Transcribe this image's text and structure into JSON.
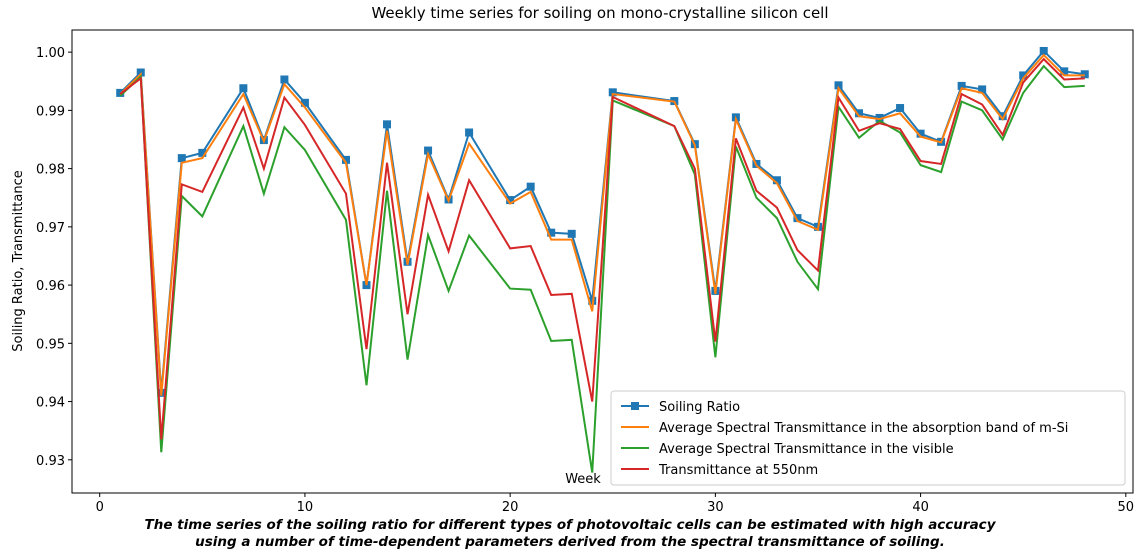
{
  "chart_data": {
    "type": "line",
    "title": "Weekly time series for soiling on mono-crystalline silicon cell",
    "x_label": "Week",
    "y_label": "Soiling Ratio, Transmittance",
    "caption": [
      "The time series of the soiling ratio for different types of photovoltaic cells can be estimated with high accuracy",
      "using a number of time-dependent parameters derived from the spectral transmittance of soiling."
    ],
    "x": [
      1,
      2,
      3,
      4,
      5,
      7,
      8,
      9,
      10,
      12,
      13,
      14,
      15,
      16,
      17,
      18,
      20,
      21,
      22,
      23,
      24,
      25,
      28,
      29,
      30,
      31,
      32,
      33,
      34,
      35,
      36,
      37,
      38,
      39,
      40,
      41,
      42,
      43,
      44,
      45,
      46,
      47,
      48
    ],
    "series": [
      {
        "name": "Soiling Ratio",
        "color": "#1f77b4",
        "marker": "square",
        "values": [
          0.993,
          0.9965,
          0.9415,
          0.9818,
          0.9827,
          0.9938,
          0.9849,
          0.9953,
          0.9913,
          0.9815,
          0.96,
          0.9876,
          0.964,
          0.9831,
          0.9747,
          0.9862,
          0.9746,
          0.9769,
          0.969,
          0.9688,
          0.9573,
          0.9931,
          0.9916,
          0.9842,
          0.959,
          0.9888,
          0.9808,
          0.978,
          0.9715,
          0.97,
          0.9943,
          0.9895,
          0.9887,
          0.9904,
          0.986,
          0.9846,
          0.9942,
          0.9936,
          0.989,
          0.996,
          1.0002,
          0.9967,
          0.9962
        ]
      },
      {
        "name": "Average Spectral Transmittance in the absorption band of m-Si",
        "color": "#ff7f0e",
        "values": [
          0.9928,
          0.9962,
          0.941,
          0.981,
          0.9818,
          0.9928,
          0.9847,
          0.9945,
          0.9905,
          0.981,
          0.96,
          0.9865,
          0.9635,
          0.9825,
          0.9745,
          0.9843,
          0.974,
          0.976,
          0.9678,
          0.9678,
          0.9555,
          0.9928,
          0.9915,
          0.984,
          0.9585,
          0.9885,
          0.9805,
          0.9775,
          0.971,
          0.9695,
          0.9938,
          0.989,
          0.9885,
          0.9895,
          0.9855,
          0.9845,
          0.9938,
          0.993,
          0.9885,
          0.9955,
          0.9995,
          0.996,
          0.996
        ]
      },
      {
        "name": "Average Spectral Transmittance in the visible",
        "color": "#2ca02c",
        "values": [
          0.9925,
          0.9958,
          0.9313,
          0.9753,
          0.9718,
          0.9873,
          0.9757,
          0.9871,
          0.9832,
          0.9712,
          0.9428,
          0.9762,
          0.9472,
          0.9686,
          0.959,
          0.9685,
          0.9594,
          0.9592,
          0.9504,
          0.9506,
          0.9278,
          0.9917,
          0.9873,
          0.979,
          0.9476,
          0.9838,
          0.975,
          0.9715,
          0.964,
          0.9593,
          0.9906,
          0.9853,
          0.9882,
          0.9862,
          0.9806,
          0.9794,
          0.9915,
          0.99,
          0.985,
          0.993,
          0.9976,
          0.994,
          0.9942
        ]
      },
      {
        "name": "Transmittance at 550nm",
        "color": "#d62728",
        "values": [
          0.9928,
          0.9955,
          0.9335,
          0.9773,
          0.976,
          0.9905,
          0.98,
          0.9922,
          0.9875,
          0.9757,
          0.949,
          0.981,
          0.955,
          0.9755,
          0.9658,
          0.978,
          0.9663,
          0.9667,
          0.9583,
          0.9585,
          0.94,
          0.9923,
          0.9873,
          0.98,
          0.9503,
          0.9852,
          0.9762,
          0.9733,
          0.966,
          0.9625,
          0.9922,
          0.9865,
          0.9878,
          0.9868,
          0.9813,
          0.9808,
          0.9928,
          0.991,
          0.9858,
          0.9948,
          0.9988,
          0.9953,
          0.9955
        ]
      }
    ],
    "xlim": [
      -1.35,
      50.35
    ],
    "ylim": [
      0.9243,
      1.0038
    ],
    "xticks": [
      0,
      10,
      20,
      30,
      40,
      50
    ],
    "yticks": [
      0.93,
      0.94,
      0.95,
      0.96,
      0.97,
      0.98,
      0.99,
      {
        "value": 1,
        "label": "1.00"
      }
    ],
    "legend": "lower right",
    "grid": false
  }
}
